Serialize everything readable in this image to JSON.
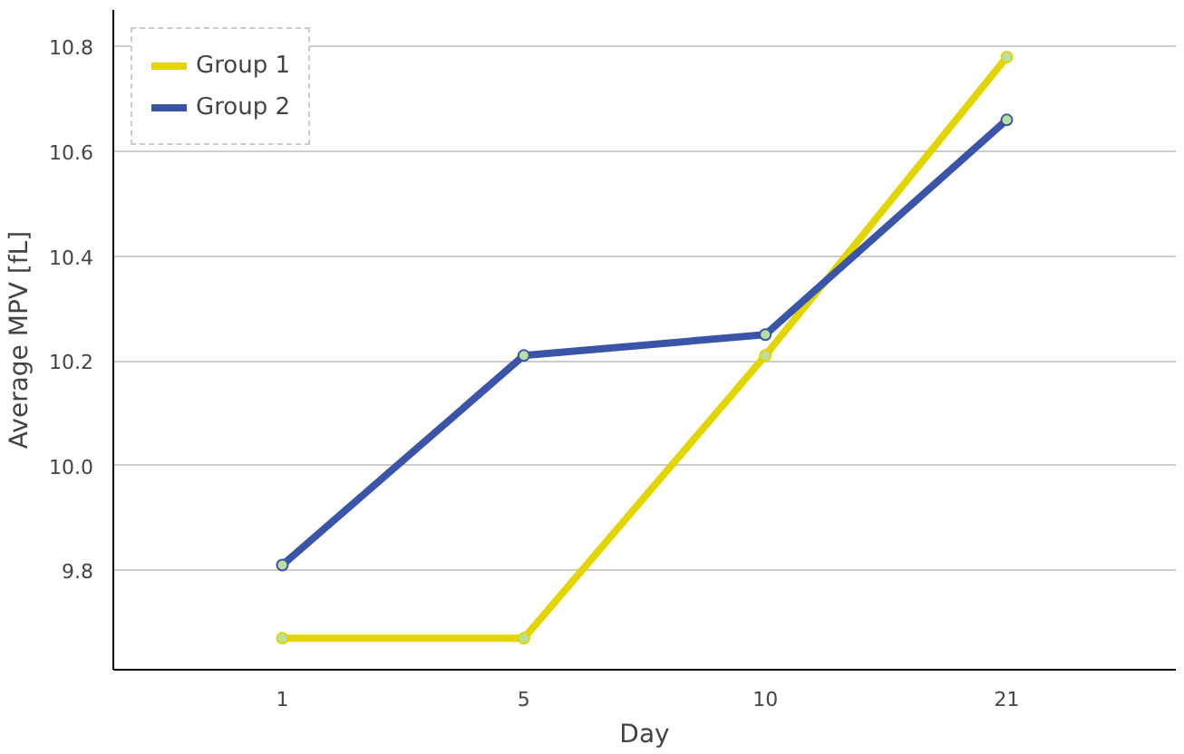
{
  "chart_data": {
    "type": "line",
    "xlabel": "Day",
    "ylabel": "Average MPV [fL]",
    "categories": [
      "1",
      "5",
      "10",
      "21"
    ],
    "series": [
      {
        "name": "Group 1",
        "color": "#e3d600",
        "values": [
          9.67,
          9.67,
          10.21,
          10.78
        ]
      },
      {
        "name": "Group 2",
        "color": "#3a55a8",
        "values": [
          9.81,
          10.21,
          10.25,
          10.66
        ]
      }
    ],
    "ylim": [
      9.61,
      10.87
    ],
    "yticks": [
      9.8,
      {
        "value": 10,
        "label": "10.0"
      },
      10.2,
      10.4,
      10.6,
      10.8
    ],
    "grid": "y",
    "legend": "top left",
    "marker": "circle",
    "line_style": "solid"
  }
}
